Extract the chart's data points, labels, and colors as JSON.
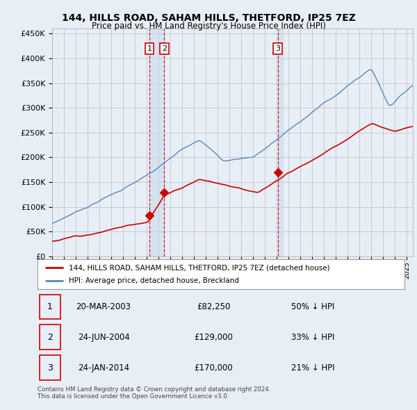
{
  "title": "144, HILLS ROAD, SAHAM HILLS, THETFORD, IP25 7EZ",
  "subtitle": "Price paid vs. HM Land Registry's House Price Index (HPI)",
  "ylabel_ticks": [
    "£0",
    "£50K",
    "£100K",
    "£150K",
    "£200K",
    "£250K",
    "£300K",
    "£350K",
    "£400K",
    "£450K"
  ],
  "ytick_values": [
    0,
    50000,
    100000,
    150000,
    200000,
    250000,
    300000,
    350000,
    400000,
    450000
  ],
  "xlim_start": 1995.0,
  "xlim_end": 2025.5,
  "ylim": [
    0,
    460000
  ],
  "transactions": [
    {
      "date": 2003.22,
      "price": 82250,
      "label": "1"
    },
    {
      "date": 2004.48,
      "price": 129000,
      "label": "2"
    },
    {
      "date": 2014.07,
      "price": 170000,
      "label": "3"
    }
  ],
  "legend_entries": [
    "144, HILLS ROAD, SAHAM HILLS, THETFORD, IP25 7EZ (detached house)",
    "HPI: Average price, detached house, Breckland"
  ],
  "table_rows": [
    {
      "num": "1",
      "date": "20-MAR-2003",
      "price": "£82,250",
      "hpi": "50% ↓ HPI"
    },
    {
      "num": "2",
      "date": "24-JUN-2004",
      "price": "£129,000",
      "hpi": "33% ↓ HPI"
    },
    {
      "num": "3",
      "date": "24-JAN-2014",
      "price": "£170,000",
      "hpi": "21% ↓ HPI"
    }
  ],
  "footer": "Contains HM Land Registry data © Crown copyright and database right 2024.\nThis data is licensed under the Open Government Licence v3.0.",
  "line_color_red": "#cc0000",
  "line_color_blue": "#5588bb",
  "vline_color": "#cc0000",
  "shade_color": "#ddeeff",
  "bg_color": "#e8eef5",
  "plot_bg": "#e8eef5",
  "marker_color_red": "#cc0000"
}
